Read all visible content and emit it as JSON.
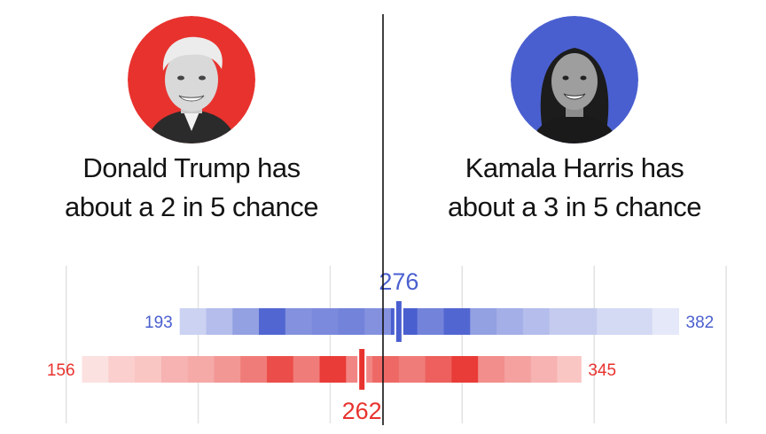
{
  "candidates": [
    {
      "name": "Donald Trump",
      "line1": "Donald Trump has",
      "line2": "about a 2 in 5 chance",
      "color": "#e8322e"
    },
    {
      "name": "Kamala Harris",
      "line1": "Kamala Harris has",
      "line2": "about a 3 in 5 chance",
      "color": "#4a5fcf"
    }
  ],
  "chart_data": {
    "type": "bar",
    "center_value": 270,
    "series": [
      {
        "color": "#4a5fcf",
        "low": 193,
        "high": 382,
        "median": 276,
        "median_label": "276",
        "low_label": "193",
        "high_label": "382",
        "bins": [
          {
            "from": 193,
            "to": 203,
            "intensity": 0.2
          },
          {
            "from": 203,
            "to": 213,
            "intensity": 0.35
          },
          {
            "from": 213,
            "to": 223,
            "intensity": 0.55
          },
          {
            "from": 223,
            "to": 233,
            "intensity": 0.95
          },
          {
            "from": 233,
            "to": 243,
            "intensity": 0.65
          },
          {
            "from": 243,
            "to": 253,
            "intensity": 0.7
          },
          {
            "from": 253,
            "to": 263,
            "intensity": 0.75
          },
          {
            "from": 263,
            "to": 273,
            "intensity": 0.65
          },
          {
            "from": 273,
            "to": 283,
            "intensity": 1.0
          },
          {
            "from": 283,
            "to": 293,
            "intensity": 0.75
          },
          {
            "from": 293,
            "to": 303,
            "intensity": 0.95
          },
          {
            "from": 303,
            "to": 313,
            "intensity": 0.55
          },
          {
            "from": 313,
            "to": 323,
            "intensity": 0.45
          },
          {
            "from": 323,
            "to": 333,
            "intensity": 0.35
          },
          {
            "from": 333,
            "to": 351,
            "intensity": 0.25
          },
          {
            "from": 351,
            "to": 372,
            "intensity": 0.15
          },
          {
            "from": 372,
            "to": 382,
            "intensity": 0.05
          }
        ]
      },
      {
        "color": "#e8322e",
        "low": 156,
        "high": 345,
        "median": 262,
        "median_label": "262",
        "low_label": "156",
        "high_label": "345",
        "bins": [
          {
            "from": 156,
            "to": 166,
            "intensity": 0.05
          },
          {
            "from": 166,
            "to": 176,
            "intensity": 0.15
          },
          {
            "from": 176,
            "to": 186,
            "intensity": 0.2
          },
          {
            "from": 186,
            "to": 196,
            "intensity": 0.3
          },
          {
            "from": 196,
            "to": 206,
            "intensity": 0.35
          },
          {
            "from": 206,
            "to": 216,
            "intensity": 0.45
          },
          {
            "from": 216,
            "to": 226,
            "intensity": 0.6
          },
          {
            "from": 226,
            "to": 236,
            "intensity": 0.85
          },
          {
            "from": 236,
            "to": 246,
            "intensity": 0.6
          },
          {
            "from": 246,
            "to": 256,
            "intensity": 0.95
          },
          {
            "from": 256,
            "to": 266,
            "intensity": 0.55
          },
          {
            "from": 266,
            "to": 276,
            "intensity": 0.7
          },
          {
            "from": 276,
            "to": 286,
            "intensity": 0.6
          },
          {
            "from": 286,
            "to": 296,
            "intensity": 0.75
          },
          {
            "from": 296,
            "to": 306,
            "intensity": 0.95
          },
          {
            "from": 306,
            "to": 316,
            "intensity": 0.5
          },
          {
            "from": 316,
            "to": 326,
            "intensity": 0.4
          },
          {
            "from": 326,
            "to": 336,
            "intensity": 0.3
          },
          {
            "from": 336,
            "to": 345,
            "intensity": 0.2
          }
        ]
      }
    ],
    "xlim": [
      135,
      405
    ],
    "gridlines": [
      150,
      200,
      250,
      300,
      350,
      400
    ],
    "grid": true
  }
}
